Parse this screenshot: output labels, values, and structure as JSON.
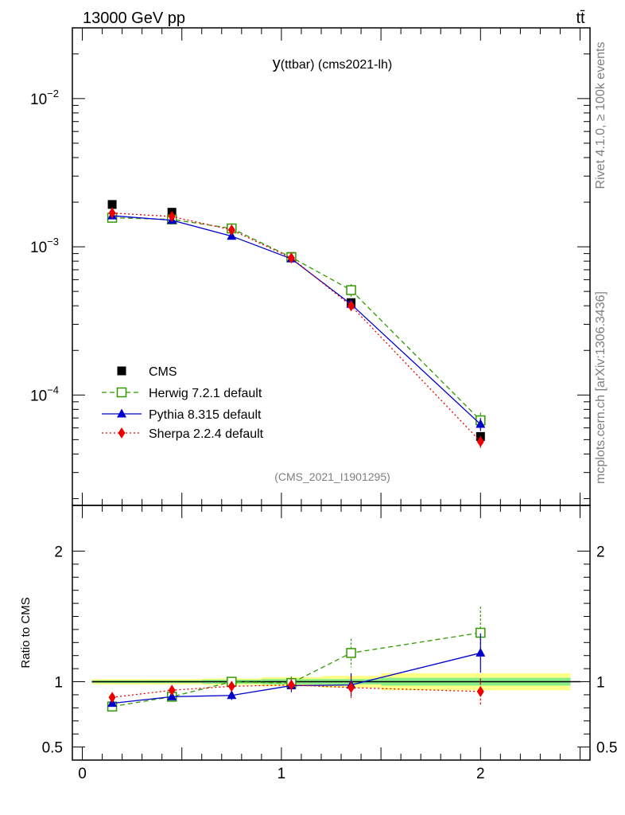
{
  "header": {
    "left": "13000 GeV pp",
    "right": "tt̄"
  },
  "side_labels": {
    "rivet": "Rivet 4.1.0, ≥ 100k events",
    "mcplots": "mcplots.cern.ch [arXiv:1306.3436]"
  },
  "analysis_id": "(CMS_2021_I1901295)",
  "chart_data": [
    {
      "type": "scatter",
      "panel": "main",
      "title_main": "y",
      "title_rest": "(ttbar) (cms2021-lh)",
      "yscale": "log",
      "ylim": [
        1.8e-05,
        0.03
      ],
      "xlim": [
        -0.05,
        2.55
      ],
      "y_ticks": [
        {
          "value": 0.01,
          "base": "10",
          "exp": "−2"
        },
        {
          "value": 0.001,
          "base": "10",
          "exp": "−3"
        },
        {
          "value": 0.0001,
          "base": "10",
          "exp": "−4"
        }
      ],
      "x": [
        0.15,
        0.45,
        0.75,
        1.05,
        1.35,
        2.0
      ],
      "series": [
        {
          "key": "cms",
          "name": "CMS",
          "color": "#000000",
          "values": [
            0.00193,
            0.00171,
            0.00133,
            0.00086,
            0.00042,
            5.25e-05
          ],
          "errors": [
            3e-05,
            3e-05,
            3e-05,
            2e-05,
            1e-05,
            2e-06
          ]
        },
        {
          "key": "herwig",
          "name": "Herwig 7.2.1 default",
          "color": "#339900",
          "values": [
            0.00157,
            0.00153,
            0.00133,
            0.00085,
            0.00051,
            6.75e-05
          ],
          "errors": [
            4e-05,
            4e-05,
            4e-05,
            3e-05,
            5e-05,
            8.5e-06
          ]
        },
        {
          "key": "pythia",
          "name": "Pythia 8.315 default",
          "color": "#0000cc",
          "values": [
            0.00162,
            0.00151,
            0.00118,
            0.00083,
            0.00041,
            6.35e-05
          ],
          "errors": [
            3e-05,
            3e-05,
            3e-05,
            3e-05,
            3e-05,
            6.5e-06
          ]
        },
        {
          "key": "sherpa",
          "name": "Sherpa 2.2.4 default",
          "color": "#ee0000",
          "values": [
            0.00169,
            0.0016,
            0.0013,
            0.00084,
            0.0004,
            4.85e-05
          ],
          "errors": [
            3e-05,
            3e-05,
            3e-05,
            3e-05,
            3e-05,
            4.5e-06
          ]
        }
      ]
    },
    {
      "type": "scatter",
      "panel": "ratio",
      "ylabel": "Ratio to CMS",
      "ylim": [
        0.4,
        2.35
      ],
      "y_ticks": [
        {
          "value": 0.5,
          "label": "0.5"
        },
        {
          "value": 1,
          "label": "1"
        },
        {
          "value": 2,
          "label": "2"
        }
      ],
      "x_ticks": [
        {
          "value": 0,
          "label": "0"
        },
        {
          "value": 1,
          "label": "1"
        },
        {
          "value": 2,
          "label": "2"
        }
      ],
      "x": [
        0.15,
        0.45,
        0.75,
        1.05,
        1.35,
        2.0
      ],
      "bands": [
        {
          "xlo": 0.0,
          "xhi": 0.3,
          "stat": 0.01,
          "total": 0.02
        },
        {
          "xlo": 0.3,
          "xhi": 0.6,
          "stat": 0.01,
          "total": 0.02
        },
        {
          "xlo": 0.6,
          "xhi": 0.9,
          "stat": 0.015,
          "total": 0.025
        },
        {
          "xlo": 0.9,
          "xhi": 1.2,
          "stat": 0.02,
          "total": 0.035
        },
        {
          "xlo": 1.2,
          "xhi": 1.5,
          "stat": 0.02,
          "total": 0.045
        },
        {
          "xlo": 1.5,
          "xhi": 2.5,
          "stat": 0.03,
          "total": 0.065
        }
      ],
      "series": [
        {
          "key": "herwig",
          "color": "#339900",
          "values": [
            0.81,
            0.885,
            1.0,
            0.99,
            1.22,
            1.375
          ],
          "errors": [
            0.025,
            0.025,
            0.035,
            0.05,
            0.11,
            0.2
          ]
        },
        {
          "key": "pythia",
          "color": "#0000cc",
          "values": [
            0.835,
            0.885,
            0.895,
            0.97,
            0.975,
            1.22
          ],
          "errors": [
            0.02,
            0.025,
            0.035,
            0.05,
            0.09,
            0.15
          ]
        },
        {
          "key": "sherpa",
          "color": "#ee0000",
          "values": [
            0.88,
            0.935,
            0.965,
            0.975,
            0.955,
            0.925
          ],
          "errors": [
            0.02,
            0.02,
            0.025,
            0.045,
            0.08,
            0.1
          ]
        }
      ]
    }
  ]
}
